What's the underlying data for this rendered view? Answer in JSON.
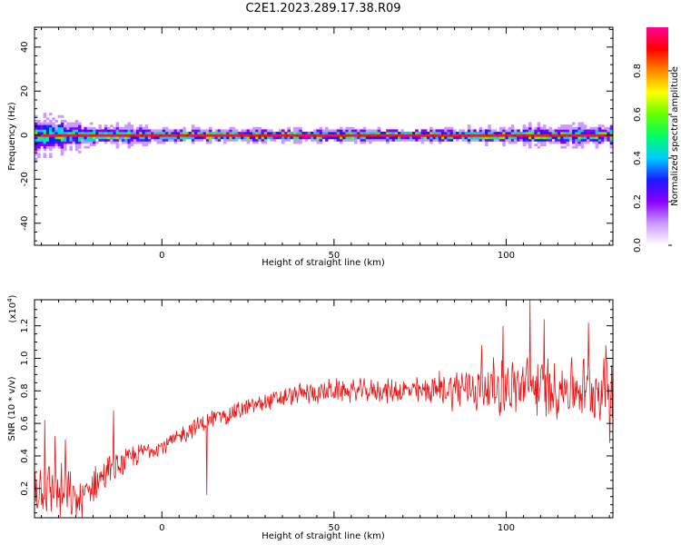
{
  "title": "C2E1.2023.289.17.38.R09",
  "chart_data": [
    {
      "type": "heatmap",
      "xlabel": "Height of straight line (km)",
      "ylabel": "Frequency (Hz)",
      "xlim": [
        -37,
        131
      ],
      "ylim": [
        -50,
        49
      ],
      "xticks": [
        0,
        50,
        100
      ],
      "yticks": [
        -40,
        -20,
        0,
        20,
        40
      ],
      "ridge_frequency": 0,
      "colorbar": {
        "label": "Normalized spectral amplitude",
        "range": [
          0.0,
          1.0
        ],
        "ticks": [
          0.0,
          0.2,
          0.4,
          0.6,
          0.8
        ],
        "tick_labels": [
          "0.0",
          "0.2",
          "0.4",
          "0.6",
          "0.8"
        ],
        "colormap": [
          "#ffffff",
          "#cc99ff",
          "#8800ff",
          "#1a1aff",
          "#00ccff",
          "#00ff66",
          "#66ff00",
          "#ffff00",
          "#ff8800",
          "#ff0000",
          "#ff0099"
        ]
      },
      "spectral_band": [
        {
          "x": -36,
          "halfwidth": 7,
          "amp": 0.5
        },
        {
          "x": -30,
          "halfwidth": 5,
          "amp": 0.55
        },
        {
          "x": -20,
          "halfwidth": 3,
          "amp": 0.6
        },
        {
          "x": -10,
          "halfwidth": 3,
          "amp": 0.6
        },
        {
          "x": 0,
          "halfwidth": 2.5,
          "amp": 0.65
        },
        {
          "x": 20,
          "halfwidth": 2,
          "amp": 0.7
        },
        {
          "x": 40,
          "halfwidth": 2,
          "amp": 0.7
        },
        {
          "x": 60,
          "halfwidth": 2,
          "amp": 0.7
        },
        {
          "x": 80,
          "halfwidth": 2,
          "amp": 0.7
        },
        {
          "x": 100,
          "halfwidth": 2.5,
          "amp": 0.65
        },
        {
          "x": 120,
          "halfwidth": 3,
          "amp": 0.6
        },
        {
          "x": 131,
          "halfwidth": 3,
          "amp": 0.6
        }
      ]
    },
    {
      "type": "line",
      "xlabel": "Height of straight line (km)",
      "ylabel": "SNR (10 * v/v)",
      "y_multiplier": "(x10",
      "y_multiplier_exp": "4",
      "y_multiplier_close": ")",
      "xlim": [
        -37,
        131
      ],
      "ylim": [
        0.02,
        1.36
      ],
      "xticks": [
        0,
        50,
        100
      ],
      "yticks": [
        0.2,
        0.4,
        0.6,
        0.8,
        1.0,
        1.2
      ],
      "ytick_labels": [
        "0.2",
        "0.4",
        "0.6",
        "0.8",
        "1.0",
        "1.2"
      ],
      "series": [
        {
          "color": "#ee1111",
          "x": [
            -37,
            -33,
            -28,
            -24,
            -20,
            -16,
            -12,
            -8,
            -4,
            0,
            4,
            8,
            12,
            16,
            20,
            24,
            28,
            32,
            36,
            40,
            45,
            50,
            55,
            60,
            65,
            70,
            75,
            80,
            85,
            90,
            95,
            100,
            105,
            110,
            115,
            120,
            125,
            131
          ],
          "mean": [
            0.22,
            0.2,
            0.16,
            0.12,
            0.22,
            0.3,
            0.34,
            0.4,
            0.44,
            0.46,
            0.5,
            0.56,
            0.6,
            0.64,
            0.66,
            0.69,
            0.72,
            0.74,
            0.76,
            0.78,
            0.79,
            0.8,
            0.8,
            0.8,
            0.8,
            0.8,
            0.8,
            0.81,
            0.82,
            0.82,
            0.82,
            0.82,
            0.82,
            0.82,
            0.82,
            0.82,
            0.82,
            0.82
          ],
          "noise": [
            0.14,
            0.15,
            0.15,
            0.1,
            0.1,
            0.08,
            0.07,
            0.06,
            0.05,
            0.05,
            0.05,
            0.05,
            0.05,
            0.05,
            0.05,
            0.05,
            0.05,
            0.05,
            0.05,
            0.06,
            0.06,
            0.06,
            0.06,
            0.06,
            0.06,
            0.07,
            0.07,
            0.09,
            0.11,
            0.13,
            0.14,
            0.15,
            0.16,
            0.16,
            0.16,
            0.16,
            0.16,
            0.16
          ],
          "peaks": [
            {
              "x": -34,
              "y": 0.62
            },
            {
              "x": -31,
              "y": 0.52
            },
            {
              "x": -28,
              "y": 0.5
            },
            {
              "x": -14,
              "y": 0.68
            },
            {
              "x": 13,
              "y": 0.16
            },
            {
              "x": 93,
              "y": 1.08
            },
            {
              "x": 99,
              "y": 1.2
            },
            {
              "x": 107,
              "y": 1.36
            },
            {
              "x": 111,
              "y": 1.24
            },
            {
              "x": 124,
              "y": 1.22
            },
            {
              "x": 129,
              "y": 1.08
            },
            {
              "x": 130,
              "y": 0.48
            }
          ]
        }
      ]
    }
  ]
}
